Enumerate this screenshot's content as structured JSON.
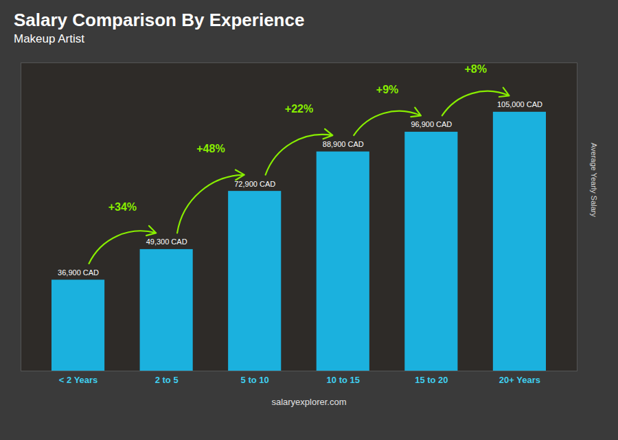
{
  "chart_data": {
    "type": "bar",
    "title": "Salary Comparison By Experience",
    "subtitle": "Makeup Artist",
    "ylabel": "Average Yearly Salary",
    "caption": "salaryexplorer.com",
    "categories": [
      "< 2 Years",
      "2 to 5",
      "5 to 10",
      "10 to 15",
      "15 to 20",
      "20+ Years"
    ],
    "values": [
      36900,
      49300,
      72900,
      88900,
      96900,
      105000
    ],
    "value_labels": [
      "36,900 CAD",
      "49,300 CAD",
      "72,900 CAD",
      "88,900 CAD",
      "96,900 CAD",
      "105,000 CAD"
    ],
    "data_labels": true,
    "color": "#1ab8e8",
    "ylim": [
      0,
      125000
    ],
    "tick_labels": "x",
    "grid": false,
    "annotations": [
      {
        "text": "+34%",
        "color": "#88ee00"
      },
      {
        "text": "+48%",
        "color": "#88ee00"
      },
      {
        "text": "+22%",
        "color": "#88ee00"
      },
      {
        "text": "+9%",
        "color": "#88ee00"
      },
      {
        "text": "+8%",
        "color": "#88ee00"
      }
    ]
  }
}
